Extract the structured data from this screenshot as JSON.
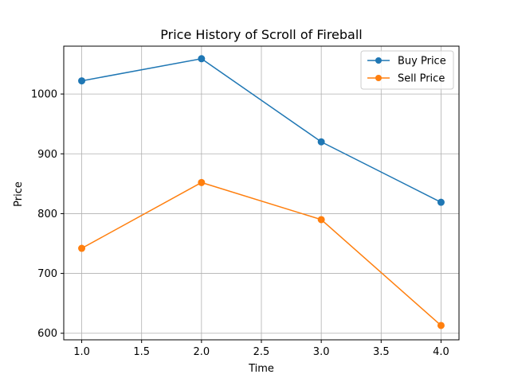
{
  "chart_data": {
    "type": "line",
    "title": "Price History of Scroll of Fireball",
    "xlabel": "Time",
    "ylabel": "Price",
    "x": [
      1.0,
      2.0,
      3.0,
      4.0
    ],
    "xlim": [
      0.85,
      4.15
    ],
    "ylim": [
      589,
      1080
    ],
    "xticks": [
      1.0,
      1.5,
      2.0,
      2.5,
      3.0,
      3.5,
      4.0
    ],
    "xtick_labels": [
      "1.0",
      "1.5",
      "2.0",
      "2.5",
      "3.0",
      "3.5",
      "4.0"
    ],
    "yticks": [
      600,
      700,
      800,
      900,
      1000
    ],
    "ytick_labels": [
      "600",
      "700",
      "800",
      "900",
      "1000"
    ],
    "grid": true,
    "legend_position": "top-right",
    "series": [
      {
        "name": "Buy Price",
        "color": "#1f77b4",
        "marker": "circle",
        "values": [
          1022,
          1059,
          920,
          819
        ]
      },
      {
        "name": "Sell Price",
        "color": "#ff7f0e",
        "marker": "circle",
        "values": [
          742,
          852,
          790,
          613
        ]
      }
    ]
  }
}
